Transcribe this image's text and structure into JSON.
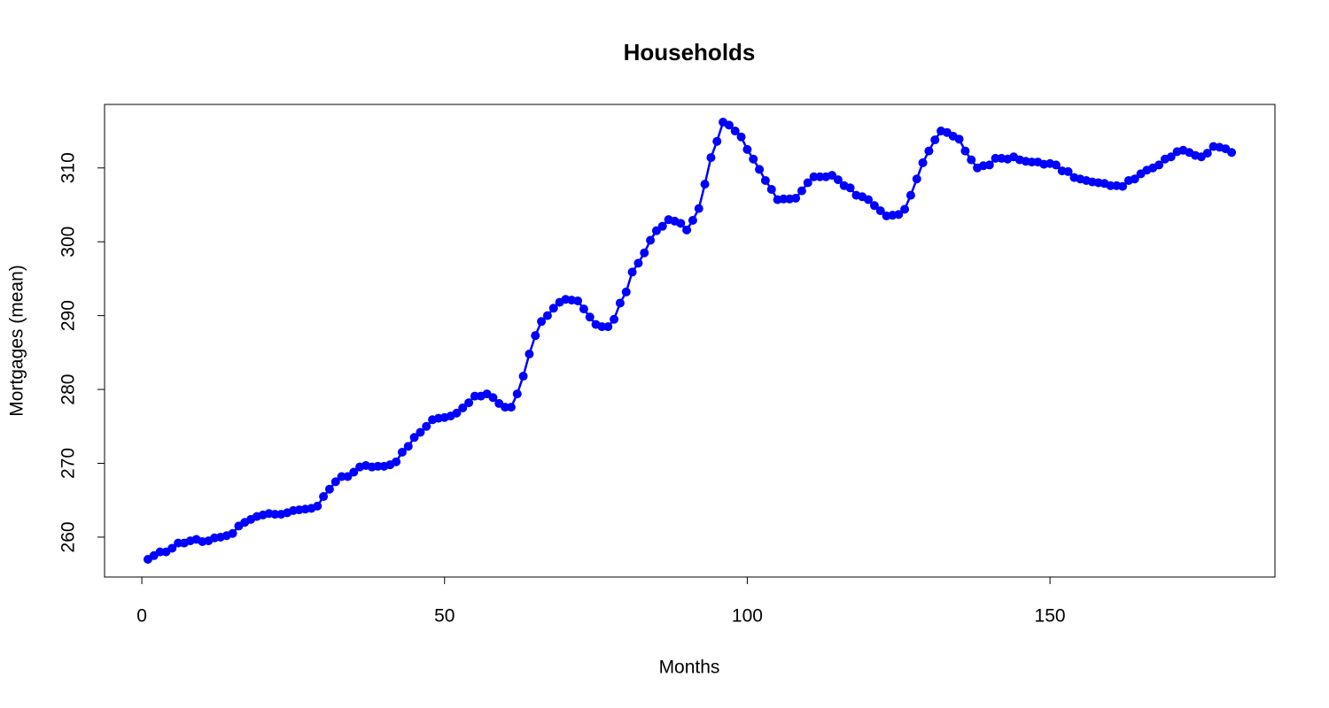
{
  "chart_data": {
    "type": "line",
    "title": "Households",
    "x_label": "Months",
    "y_label": "Mortgages (mean)",
    "color": "#0000ff",
    "x": [
      1,
      2,
      3,
      4,
      5,
      6,
      7,
      8,
      9,
      10,
      11,
      12,
      13,
      14,
      15,
      16,
      17,
      18,
      19,
      20,
      21,
      22,
      23,
      24,
      25,
      26,
      27,
      28,
      29,
      30,
      31,
      32,
      33,
      34,
      35,
      36,
      37,
      38,
      39,
      40,
      41,
      42,
      43,
      44,
      45,
      46,
      47,
      48,
      49,
      50,
      51,
      52,
      53,
      54,
      55,
      56,
      57,
      58,
      59,
      60,
      61,
      62,
      63,
      64,
      65,
      66,
      67,
      68,
      69,
      70,
      71,
      72,
      73,
      74,
      75,
      76,
      77,
      78,
      79,
      80,
      81,
      82,
      83,
      84,
      85,
      86,
      87,
      88,
      89,
      90,
      91,
      92,
      93,
      94,
      95,
      96,
      97,
      98,
      99,
      100,
      101,
      102,
      103,
      104,
      105,
      106,
      107,
      108,
      109,
      110,
      111,
      112,
      113,
      114,
      115,
      116,
      117,
      118,
      119,
      120,
      121,
      122,
      123,
      124,
      125,
      126,
      127,
      128,
      129,
      130,
      131,
      132,
      133,
      134,
      135,
      136,
      137,
      138,
      139,
      140,
      141,
      142,
      143,
      144,
      145,
      146,
      147,
      148,
      149,
      150,
      151,
      152,
      153,
      154,
      155,
      156,
      157,
      158,
      159,
      160,
      161,
      162,
      163,
      164,
      165,
      166,
      167,
      168,
      169,
      170,
      171,
      172,
      173,
      174,
      175,
      176,
      177,
      178,
      179,
      180
    ],
    "values": [
      257.0,
      257.5,
      258.0,
      258.0,
      258.5,
      259.2,
      259.2,
      259.5,
      259.7,
      259.4,
      259.5,
      259.9,
      260.0,
      260.2,
      260.5,
      261.5,
      262.0,
      262.4,
      262.8,
      263.0,
      263.2,
      263.1,
      263.1,
      263.3,
      263.6,
      263.7,
      263.8,
      263.9,
      264.2,
      265.5,
      266.5,
      267.5,
      268.2,
      268.2,
      268.8,
      269.5,
      269.7,
      269.5,
      269.6,
      269.6,
      269.8,
      270.2,
      271.5,
      272.3,
      273.5,
      274.2,
      275.0,
      275.9,
      276.1,
      276.2,
      276.4,
      276.8,
      277.5,
      278.2,
      279.1,
      279.1,
      279.4,
      278.9,
      278.1,
      277.6,
      277.6,
      279.4,
      281.8,
      284.8,
      287.3,
      289.2,
      290.0,
      291.0,
      291.8,
      292.2,
      292.1,
      292.0,
      290.9,
      289.8,
      288.8,
      288.5,
      288.5,
      289.5,
      291.7,
      293.2,
      295.9,
      297.1,
      298.5,
      300.2,
      301.5,
      302.1,
      303.0,
      302.8,
      302.5,
      301.6,
      302.9,
      304.5,
      307.8,
      311.4,
      313.6,
      316.2,
      315.8,
      315.0,
      314.2,
      312.5,
      311.2,
      309.8,
      308.3,
      307.1,
      305.7,
      305.8,
      305.8,
      305.9,
      306.9,
      308.0,
      308.8,
      308.8,
      308.8,
      309.0,
      308.4,
      307.6,
      307.3,
      306.3,
      306.1,
      305.7,
      304.9,
      304.2,
      303.5,
      303.6,
      303.7,
      304.4,
      306.3,
      308.5,
      310.7,
      312.3,
      313.8,
      315.0,
      314.8,
      314.3,
      313.9,
      312.3,
      311.1,
      310.0,
      310.3,
      310.4,
      311.3,
      311.3,
      311.2,
      311.5,
      311.1,
      310.9,
      310.8,
      310.8,
      310.5,
      310.6,
      310.4,
      309.6,
      309.5,
      308.7,
      308.5,
      308.3,
      308.1,
      308.0,
      307.9,
      307.6,
      307.6,
      307.5,
      308.3,
      308.5,
      309.2,
      309.7,
      310.0,
      310.4,
      311.2,
      311.5,
      312.2,
      312.4,
      312.1,
      311.7,
      311.5,
      312.0,
      312.9,
      312.8,
      312.6,
      312.1
    ],
    "xlim": [
      -6.16,
      187.16
    ],
    "ylim": [
      254.6,
      318.6
    ],
    "xticks": [
      0,
      50,
      100,
      150
    ],
    "yticks": [
      260,
      270,
      280,
      290,
      300,
      310
    ]
  }
}
